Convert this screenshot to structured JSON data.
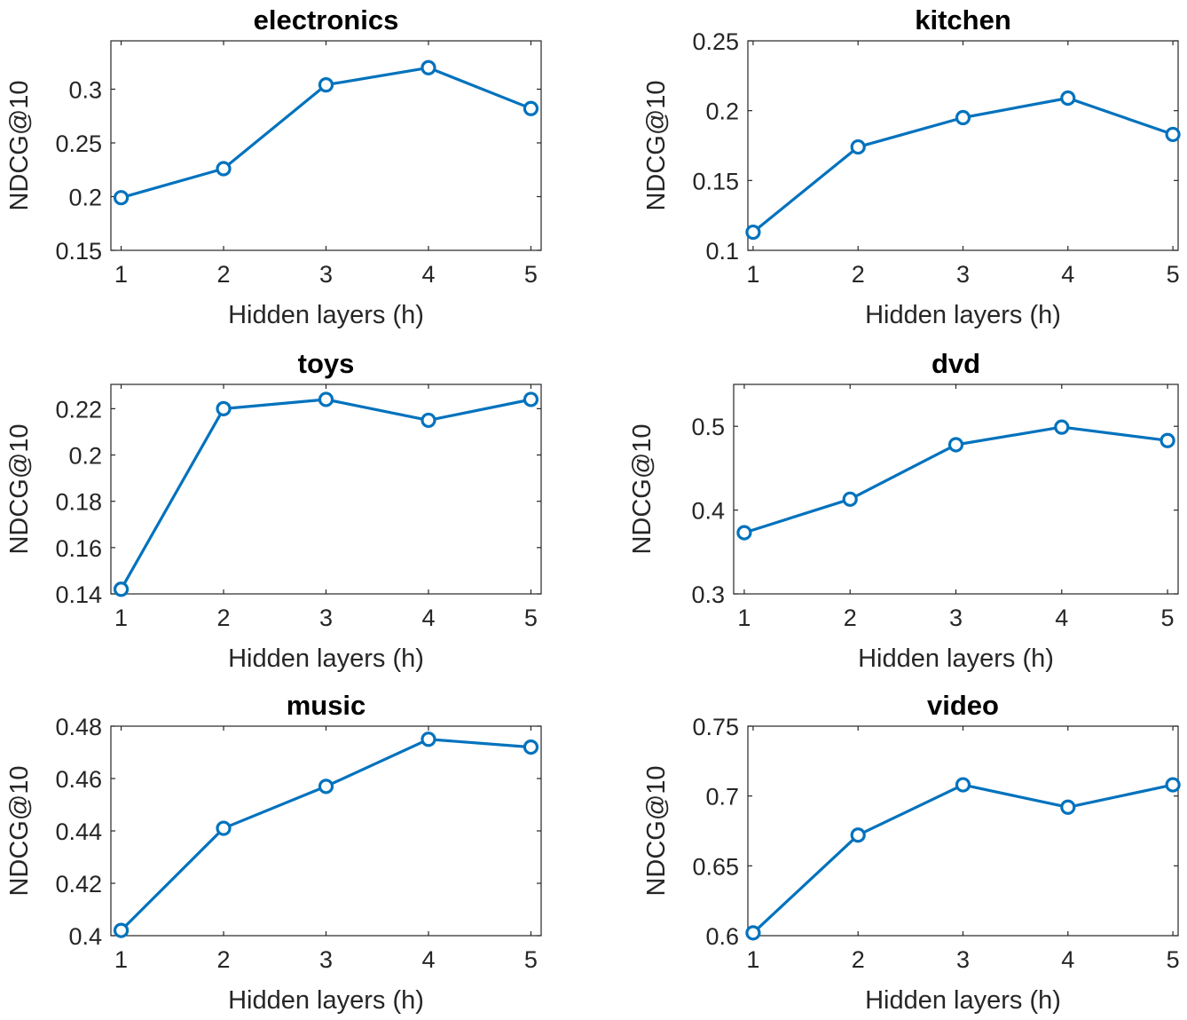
{
  "chart_data": [
    {
      "type": "line",
      "title": "electronics",
      "xlabel": "Hidden layers (h)",
      "ylabel": "NDCG@10",
      "x": [
        1,
        2,
        3,
        4,
        5
      ],
      "xticks": [
        "1",
        "2",
        "3",
        "4",
        "5"
      ],
      "xlim": [
        0.9,
        5.1
      ],
      "yticks": [
        "0.15",
        "0.2",
        "0.25",
        "0.3"
      ],
      "ylim": [
        0.15,
        0.345
      ],
      "series": [
        {
          "values": [
            0.199,
            0.226,
            0.304,
            0.32,
            0.282
          ],
          "color": "#0072BD"
        }
      ]
    },
    {
      "type": "line",
      "title": "kitchen",
      "xlabel": "Hidden layers (h)",
      "ylabel": "NDCG@10",
      "x": [
        1,
        2,
        3,
        4,
        5
      ],
      "xticks": [
        "1",
        "2",
        "3",
        "4",
        "5"
      ],
      "xlim": [
        0.95,
        5.05
      ],
      "yticks": [
        "0.1",
        "0.15",
        "0.2",
        "0.25"
      ],
      "ylim": [
        0.1,
        0.25
      ],
      "series": [
        {
          "values": [
            0.113,
            0.174,
            0.195,
            0.209,
            0.183
          ],
          "color": "#0072BD"
        }
      ]
    },
    {
      "type": "line",
      "title": "toys",
      "xlabel": "Hidden layers (h)",
      "ylabel": "NDCG@10",
      "x": [
        1,
        2,
        3,
        4,
        5
      ],
      "xticks": [
        "1",
        "2",
        "3",
        "4",
        "5"
      ],
      "xlim": [
        0.9,
        5.1
      ],
      "yticks": [
        "0.14",
        "0.16",
        "0.18",
        "0.2",
        "0.22"
      ],
      "ylim": [
        0.14,
        0.2305
      ],
      "series": [
        {
          "values": [
            0.142,
            0.22,
            0.224,
            0.215,
            0.224
          ],
          "color": "#0072BD"
        }
      ]
    },
    {
      "type": "line",
      "title": "dvd",
      "xlabel": "Hidden layers (h)",
      "ylabel": "NDCG@10",
      "x": [
        1,
        2,
        3,
        4,
        5
      ],
      "xticks": [
        "1",
        "2",
        "3",
        "4",
        "5"
      ],
      "xlim": [
        0.9,
        5.1
      ],
      "yticks": [
        "0.3",
        "0.4",
        "0.5"
      ],
      "ylim": [
        0.3,
        0.55
      ],
      "series": [
        {
          "values": [
            0.373,
            0.413,
            0.478,
            0.499,
            0.483
          ],
          "color": "#0072BD"
        }
      ]
    },
    {
      "type": "line",
      "title": "music",
      "xlabel": "Hidden layers (h)",
      "ylabel": "NDCG@10",
      "x": [
        1,
        2,
        3,
        4,
        5
      ],
      "xticks": [
        "1",
        "2",
        "3",
        "4",
        "5"
      ],
      "xlim": [
        0.9,
        5.1
      ],
      "yticks": [
        "0.4",
        "0.42",
        "0.44",
        "0.46",
        "0.48"
      ],
      "ylim": [
        0.4,
        0.48
      ],
      "series": [
        {
          "values": [
            0.402,
            0.441,
            0.457,
            0.475,
            0.472
          ],
          "color": "#0072BD"
        }
      ]
    },
    {
      "type": "line",
      "title": "video",
      "xlabel": "Hidden layers (h)",
      "ylabel": "NDCG@10",
      "x": [
        1,
        2,
        3,
        4,
        5
      ],
      "xticks": [
        "1",
        "2",
        "3",
        "4",
        "5"
      ],
      "xlim": [
        0.95,
        5.05
      ],
      "yticks": [
        "0.6",
        "0.65",
        "0.7",
        "0.75"
      ],
      "ylim": [
        0.6,
        0.75
      ],
      "series": [
        {
          "values": [
            0.602,
            0.672,
            0.708,
            0.692,
            0.708
          ],
          "color": "#0072BD"
        }
      ]
    }
  ]
}
